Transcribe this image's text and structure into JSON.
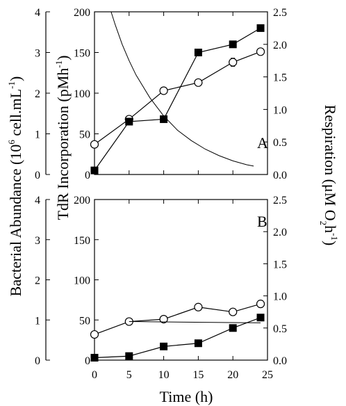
{
  "chart_data": [
    {
      "panel": "A",
      "type": "line",
      "x": [
        0,
        5,
        10,
        15,
        20,
        24
      ],
      "xlim": [
        0,
        25
      ],
      "series": [
        {
          "marker": "open-circle",
          "axis": "tdr",
          "values": [
            37,
            68,
            103,
            113,
            138,
            151
          ],
          "errors": [
            0,
            0,
            4,
            3,
            5,
            4
          ]
        },
        {
          "marker": "filled-square",
          "axis": "tdr",
          "values": [
            5,
            65,
            68,
            150,
            160,
            180
          ],
          "errors": [
            0,
            0,
            2,
            0,
            3,
            0
          ]
        }
      ],
      "decay_curve": {
        "axis": "respiration",
        "x": [
          2.4,
          3,
          4,
          5,
          6,
          8,
          10,
          12,
          14,
          16,
          18,
          20,
          22,
          23
        ],
        "y": [
          2.5,
          2.3,
          2.0,
          1.75,
          1.53,
          1.18,
          0.9,
          0.68,
          0.52,
          0.39,
          0.29,
          0.21,
          0.15,
          0.13
        ]
      }
    },
    {
      "panel": "B",
      "type": "line",
      "x": [
        0,
        5,
        10,
        15,
        20,
        24
      ],
      "xlim": [
        0,
        25
      ],
      "series": [
        {
          "marker": "open-circle",
          "axis": "tdr",
          "values": [
            32,
            48,
            51,
            66,
            60,
            70
          ],
          "errors": [
            3,
            2,
            2,
            3,
            2,
            3
          ]
        },
        {
          "marker": "filled-square",
          "axis": "tdr",
          "values": [
            3,
            5,
            17,
            21,
            40,
            53
          ],
          "errors": [
            0,
            0,
            0,
            2,
            3,
            4
          ]
        }
      ],
      "flat_line": {
        "axis": "respiration",
        "x": [
          5,
          24
        ],
        "y": [
          0.6,
          0.58
        ]
      }
    }
  ],
  "axes": {
    "abundance": {
      "title_main": "Bacterial Abundance (10",
      "title_sup1": "6",
      "title_mid": " cell.mL",
      "title_sup2": "-1",
      "title_end": ")",
      "ticks": [
        "0",
        "1",
        "2",
        "3",
        "4"
      ],
      "range": [
        0,
        4
      ]
    },
    "tdr": {
      "title_main": "TdR Incorporation (pMh",
      "title_sup": "-1",
      "title_end": ")",
      "ticks": [
        "0",
        "50",
        "100",
        "150",
        "200"
      ],
      "range": [
        0,
        200
      ]
    },
    "respiration": {
      "title_main": "Respiration (",
      "title_mu": "μ",
      "title_mid": "M O",
      "title_sub": "2",
      "title_mid2": "h",
      "title_sup": "-1",
      "title_end": ")",
      "ticks": [
        "0.0",
        "0.5",
        "1.0",
        "1.5",
        "2.0",
        "2.5"
      ],
      "range": [
        0,
        2.5
      ]
    },
    "time": {
      "title": "Time (h)",
      "ticks": [
        "0",
        "5",
        "10",
        "15",
        "20",
        "25"
      ]
    }
  },
  "panel_labels": {
    "a": "A",
    "b": "B"
  }
}
